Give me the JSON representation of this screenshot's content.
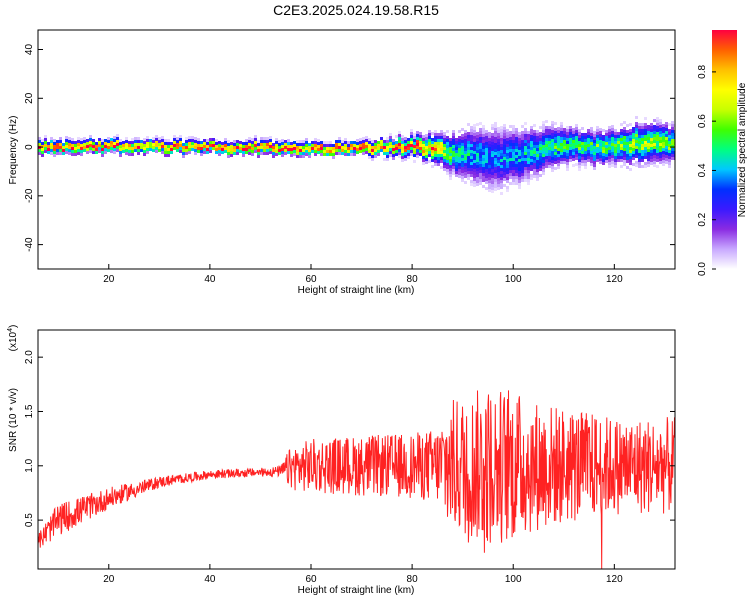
{
  "figure": {
    "title": "C2E3.2025.024.19.58.R15"
  },
  "colors": {
    "signal": "#ff2222",
    "axis": "#000000",
    "colormap_stops": [
      "#ffffff",
      "#c8a8ff",
      "#8a2be2",
      "#3a1aff",
      "#0030ff",
      "#00c8ff",
      "#00ff80",
      "#40ff00",
      "#c8ff00",
      "#ffff00",
      "#ffc000",
      "#ff6000",
      "#ff0040"
    ]
  },
  "chart_data": [
    {
      "type": "heatmap",
      "xlabel": "Height of straight line (km)",
      "ylabel": "Frequency (Hz)",
      "xlim": [
        6,
        132
      ],
      "ylim": [
        -50,
        48
      ],
      "xticks": [
        20,
        40,
        60,
        80,
        100,
        120
      ],
      "yticks": [
        -40,
        -20,
        0,
        20,
        40
      ],
      "grid": false,
      "colorbar": {
        "label": "Normalized spectral amplitude",
        "range": [
          0.0,
          0.97
        ],
        "ticks": [
          "0.0",
          "0.2",
          "0.4",
          "0.6",
          "0.8"
        ],
        "tick_values": [
          0.0,
          0.2,
          0.4,
          0.6,
          0.8
        ]
      },
      "ridge": {
        "x": [
          6,
          10,
          20,
          30,
          40,
          50,
          60,
          70,
          80,
          84,
          88,
          92,
          96,
          100,
          104,
          108,
          112,
          116,
          120,
          124,
          128,
          132
        ],
        "center_hz": [
          0.5,
          0.5,
          1.0,
          0.5,
          0.5,
          0.5,
          0.0,
          0.0,
          1.0,
          0.0,
          -2.0,
          -3.0,
          -4.0,
          -3.0,
          -2.0,
          1.0,
          1.0,
          0.0,
          1.0,
          2.0,
          3.0,
          2.0
        ],
        "halfwidth_hz": [
          2,
          2,
          2,
          2,
          2,
          2,
          2,
          2,
          3,
          4,
          6,
          8,
          9,
          8,
          7,
          6,
          5,
          5,
          5,
          6,
          6,
          5
        ],
        "peak_amplitude": [
          0.9,
          0.9,
          0.85,
          0.85,
          0.85,
          0.9,
          0.9,
          0.9,
          0.85,
          0.8,
          0.5,
          0.4,
          0.35,
          0.4,
          0.45,
          0.5,
          0.5,
          0.55,
          0.55,
          0.6,
          0.6,
          0.55
        ]
      }
    },
    {
      "type": "line",
      "xlabel": "Height of straight line (km)",
      "ylabel": "SNR (10 * v/v)",
      "y_multiplier": "(x10",
      "y_multiplier_exp": "4",
      "y_multiplier_close": ")",
      "xlim": [
        6,
        132
      ],
      "ylim": [
        0.05,
        2.25
      ],
      "xticks": [
        20,
        40,
        60,
        80,
        100,
        120
      ],
      "yticks": [
        0.5,
        1.0,
        1.5,
        2.0
      ],
      "ytick_labels": [
        "0.5",
        "1.0",
        "1.5",
        "2.0"
      ],
      "grid": false,
      "series": [
        {
          "color": "#ff2222",
          "envelope": {
            "x": [
              6,
              10,
              20,
              30,
              40,
              50,
              54,
              56,
              60,
              70,
              80,
              85,
              87,
              90,
              95,
              100,
              105,
              110,
              115,
              120,
              125,
              132
            ],
            "mean": [
              0.3,
              0.5,
              0.7,
              0.85,
              0.92,
              0.94,
              0.95,
              0.98,
              1.0,
              1.0,
              1.0,
              1.0,
              1.0,
              1.0,
              1.0,
              1.0,
              1.0,
              1.0,
              1.0,
              1.0,
              1.0,
              1.0
            ],
            "spread": [
              0.08,
              0.15,
              0.1,
              0.05,
              0.04,
              0.04,
              0.05,
              0.2,
              0.25,
              0.28,
              0.3,
              0.35,
              0.6,
              0.65,
              0.75,
              0.7,
              0.6,
              0.55,
              0.5,
              0.45,
              0.45,
              0.45
            ]
          }
        }
      ]
    }
  ]
}
